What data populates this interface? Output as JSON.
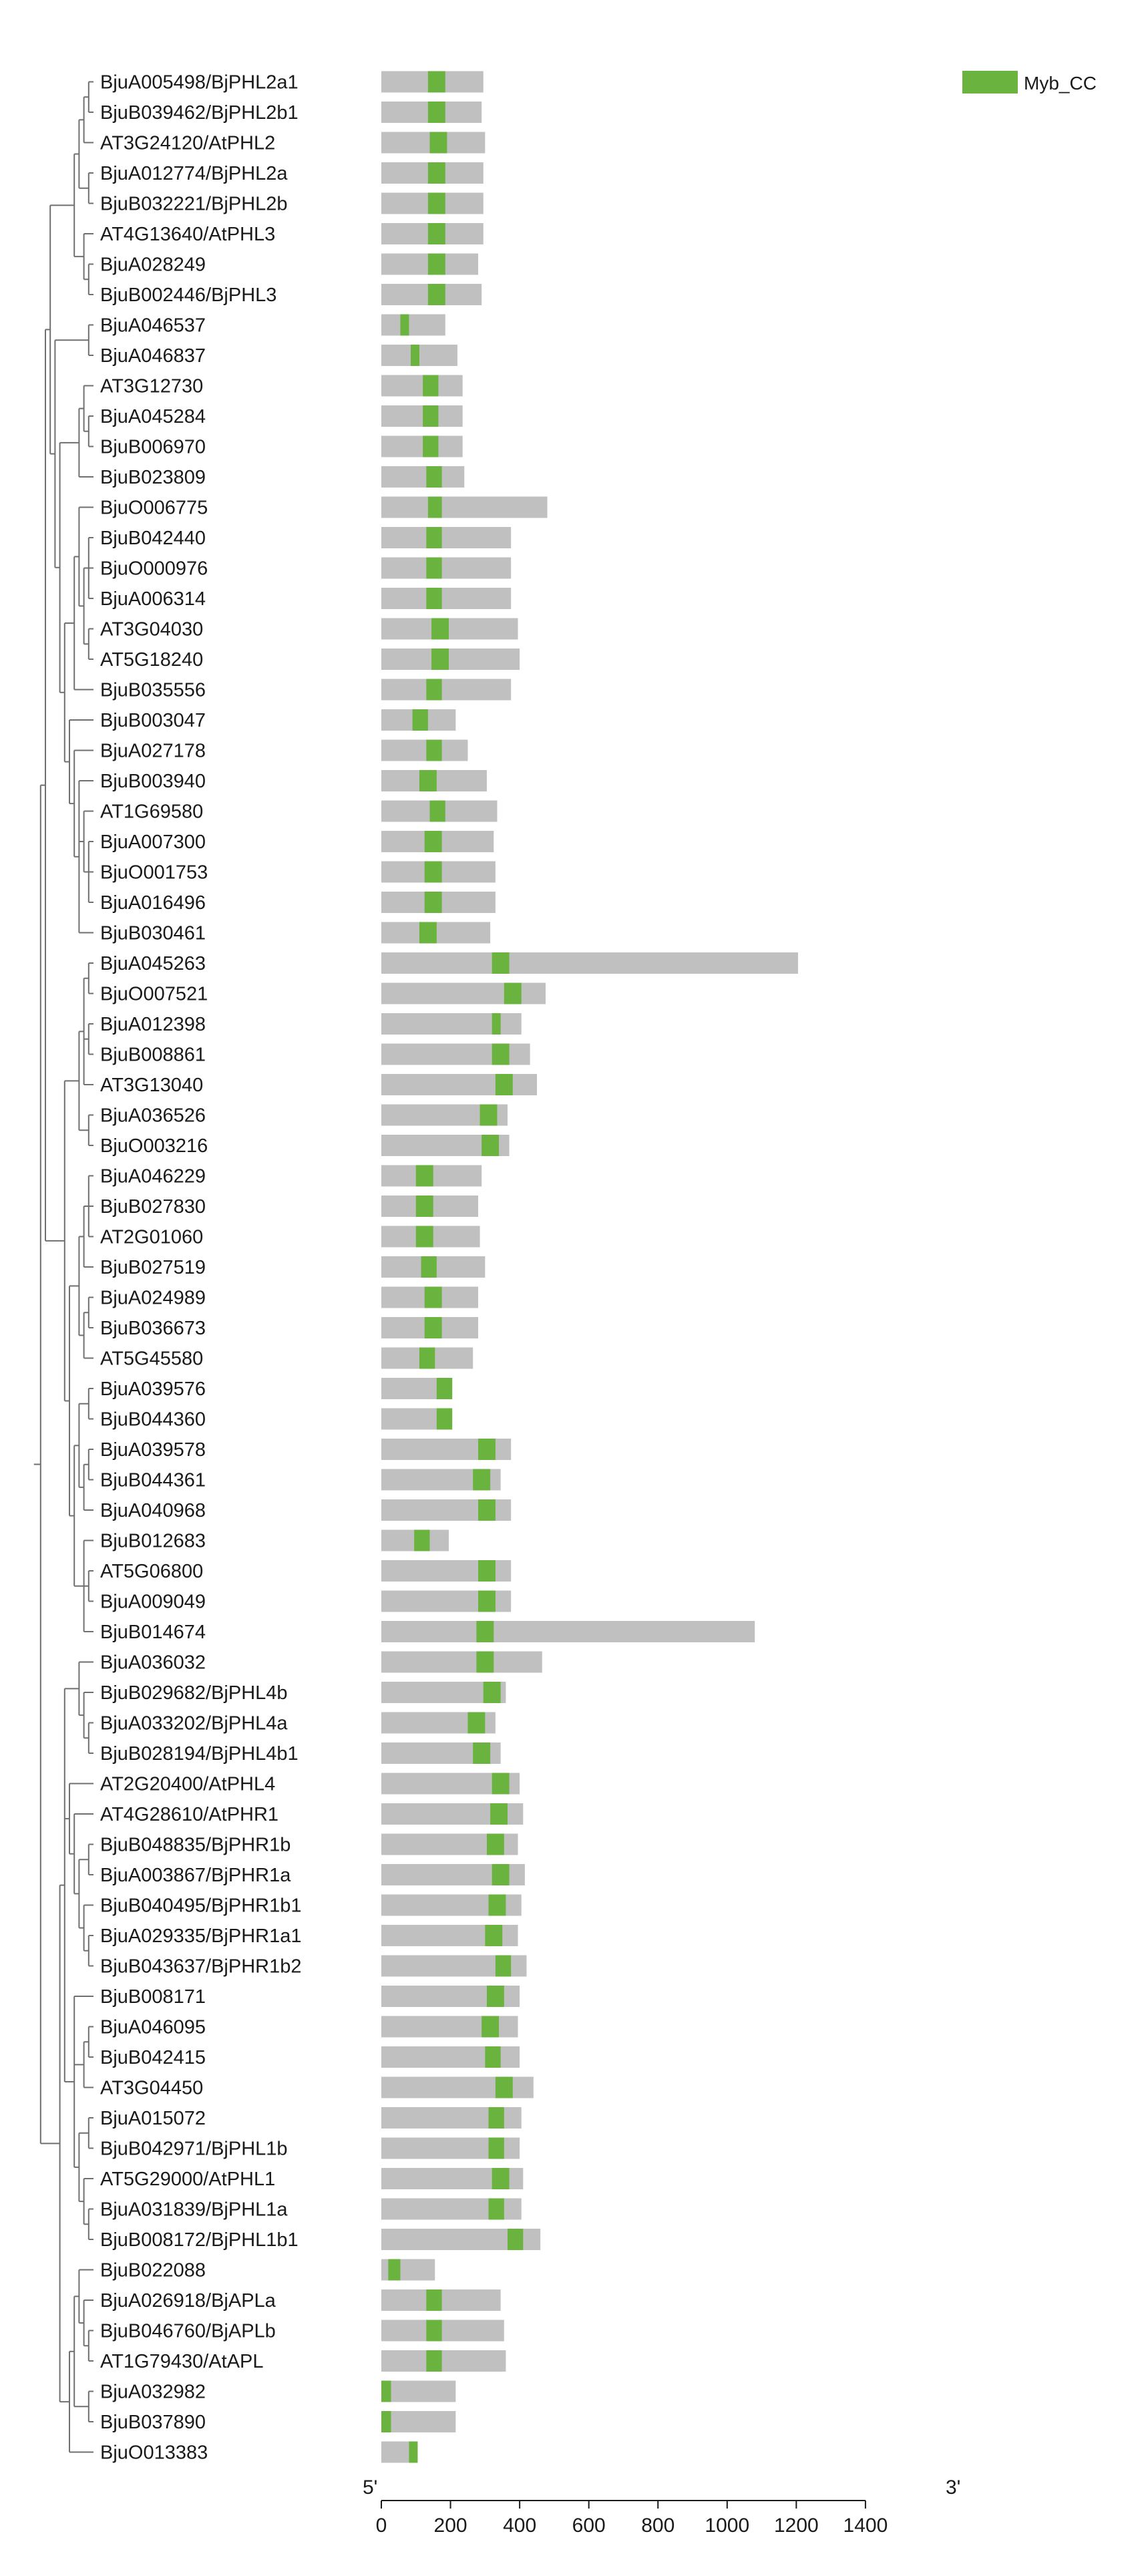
{
  "legend": {
    "label": "Myb_CC",
    "color": "#6ab33f"
  },
  "colors": {
    "protein": "#c0c0c0",
    "domain": "#6ab33f",
    "tree": "#6f6f6f",
    "axis": "#1a1a1a"
  },
  "axis": {
    "start_label": "5'",
    "end_label": "3'",
    "ticks": [
      0,
      200,
      400,
      600,
      800,
      1000,
      1200,
      1400
    ],
    "max": 1400
  },
  "genes": [
    {
      "name": "BjuA005498/BjPHL2a1",
      "length": 295,
      "domain": [
        135,
        185
      ]
    },
    {
      "name": "BjuB039462/BjPHL2b1",
      "length": 290,
      "domain": [
        135,
        185
      ]
    },
    {
      "name": "AT3G24120/AtPHL2",
      "length": 300,
      "domain": [
        140,
        190
      ]
    },
    {
      "name": "BjuA012774/BjPHL2a",
      "length": 295,
      "domain": [
        135,
        185
      ]
    },
    {
      "name": "BjuB032221/BjPHL2b",
      "length": 295,
      "domain": [
        135,
        185
      ]
    },
    {
      "name": "AT4G13640/AtPHL3",
      "length": 295,
      "domain": [
        135,
        185
      ]
    },
    {
      "name": "BjuA028249",
      "length": 280,
      "domain": [
        135,
        185
      ]
    },
    {
      "name": "BjuB002446/BjPHL3",
      "length": 290,
      "domain": [
        135,
        185
      ]
    },
    {
      "name": "BjuA046537",
      "length": 185,
      "domain": [
        55,
        80
      ]
    },
    {
      "name": "BjuA046837",
      "length": 220,
      "domain": [
        85,
        110
      ]
    },
    {
      "name": "AT3G12730",
      "length": 235,
      "domain": [
        120,
        165
      ]
    },
    {
      "name": "BjuA045284",
      "length": 235,
      "domain": [
        120,
        165
      ]
    },
    {
      "name": "BjuB006970",
      "length": 235,
      "domain": [
        120,
        165
      ]
    },
    {
      "name": "BjuB023809",
      "length": 240,
      "domain": [
        130,
        175
      ]
    },
    {
      "name": "BjuO006775",
      "length": 480,
      "domain": [
        135,
        175
      ]
    },
    {
      "name": "BjuB042440",
      "length": 375,
      "domain": [
        130,
        175
      ]
    },
    {
      "name": "BjuO000976",
      "length": 375,
      "domain": [
        130,
        175
      ]
    },
    {
      "name": "BjuA006314",
      "length": 375,
      "domain": [
        130,
        175
      ]
    },
    {
      "name": "AT3G04030",
      "length": 395,
      "domain": [
        145,
        195
      ]
    },
    {
      "name": "AT5G18240",
      "length": 400,
      "domain": [
        145,
        195
      ]
    },
    {
      "name": "BjuB035556",
      "length": 375,
      "domain": [
        130,
        175
      ]
    },
    {
      "name": "BjuB003047",
      "length": 215,
      "domain": [
        90,
        135
      ]
    },
    {
      "name": "BjuA027178",
      "length": 250,
      "domain": [
        130,
        175
      ]
    },
    {
      "name": "BjuB003940",
      "length": 305,
      "domain": [
        110,
        160
      ]
    },
    {
      "name": "AT1G69580",
      "length": 335,
      "domain": [
        140,
        185
      ]
    },
    {
      "name": "BjuA007300",
      "length": 325,
      "domain": [
        125,
        175
      ]
    },
    {
      "name": "BjuO001753",
      "length": 330,
      "domain": [
        125,
        175
      ]
    },
    {
      "name": "BjuA016496",
      "length": 330,
      "domain": [
        125,
        175
      ]
    },
    {
      "name": "BjuB030461",
      "length": 315,
      "domain": [
        110,
        160
      ]
    },
    {
      "name": "BjuA045263",
      "length": 1205,
      "domain": [
        320,
        370
      ]
    },
    {
      "name": "BjuO007521",
      "length": 475,
      "domain": [
        355,
        405
      ]
    },
    {
      "name": "BjuA012398",
      "length": 405,
      "domain": [
        320,
        345
      ]
    },
    {
      "name": "BjuB008861",
      "length": 430,
      "domain": [
        320,
        370
      ]
    },
    {
      "name": "AT3G13040",
      "length": 450,
      "domain": [
        330,
        380
      ]
    },
    {
      "name": "BjuA036526",
      "length": 365,
      "domain": [
        285,
        335
      ]
    },
    {
      "name": "BjuO003216",
      "length": 370,
      "domain": [
        290,
        340
      ]
    },
    {
      "name": "BjuA046229",
      "length": 290,
      "domain": [
        100,
        150
      ]
    },
    {
      "name": "BjuB027830",
      "length": 280,
      "domain": [
        100,
        150
      ]
    },
    {
      "name": "AT2G01060",
      "length": 285,
      "domain": [
        100,
        150
      ]
    },
    {
      "name": "BjuB027519",
      "length": 300,
      "domain": [
        115,
        160
      ]
    },
    {
      "name": "BjuA024989",
      "length": 280,
      "domain": [
        125,
        175
      ]
    },
    {
      "name": "BjuB036673",
      "length": 280,
      "domain": [
        125,
        175
      ]
    },
    {
      "name": "AT5G45580",
      "length": 265,
      "domain": [
        110,
        155
      ]
    },
    {
      "name": "BjuA039576",
      "length": 205,
      "domain": [
        160,
        205
      ]
    },
    {
      "name": "BjuB044360",
      "length": 205,
      "domain": [
        160,
        205
      ]
    },
    {
      "name": "BjuA039578",
      "length": 375,
      "domain": [
        280,
        330
      ]
    },
    {
      "name": "BjuB044361",
      "length": 345,
      "domain": [
        265,
        315
      ]
    },
    {
      "name": "BjuA040968",
      "length": 375,
      "domain": [
        280,
        330
      ]
    },
    {
      "name": "BjuB012683",
      "length": 195,
      "domain": [
        95,
        140
      ]
    },
    {
      "name": "AT5G06800",
      "length": 375,
      "domain": [
        280,
        330
      ]
    },
    {
      "name": "BjuA009049",
      "length": 375,
      "domain": [
        280,
        330
      ]
    },
    {
      "name": "BjuB014674",
      "length": 1080,
      "domain": [
        275,
        325
      ]
    },
    {
      "name": "BjuA036032",
      "length": 465,
      "domain": [
        275,
        325
      ]
    },
    {
      "name": "BjuB029682/BjPHL4b",
      "length": 360,
      "domain": [
        295,
        345
      ]
    },
    {
      "name": "BjuA033202/BjPHL4a",
      "length": 330,
      "domain": [
        250,
        300
      ]
    },
    {
      "name": "BjuB028194/BjPHL4b1",
      "length": 345,
      "domain": [
        265,
        315
      ]
    },
    {
      "name": "AT2G20400/AtPHL4",
      "length": 400,
      "domain": [
        320,
        370
      ]
    },
    {
      "name": "AT4G28610/AtPHR1",
      "length": 410,
      "domain": [
        315,
        365
      ]
    },
    {
      "name": "BjuB048835/BjPHR1b",
      "length": 395,
      "domain": [
        305,
        355
      ]
    },
    {
      "name": "BjuA003867/BjPHR1a",
      "length": 415,
      "domain": [
        320,
        370
      ]
    },
    {
      "name": "BjuB040495/BjPHR1b1",
      "length": 405,
      "domain": [
        310,
        360
      ]
    },
    {
      "name": "BjuA029335/BjPHR1a1",
      "length": 395,
      "domain": [
        300,
        350
      ]
    },
    {
      "name": "BjuB043637/BjPHR1b2",
      "length": 420,
      "domain": [
        330,
        375
      ]
    },
    {
      "name": "BjuB008171",
      "length": 400,
      "domain": [
        305,
        355
      ]
    },
    {
      "name": "BjuA046095",
      "length": 395,
      "domain": [
        290,
        340
      ]
    },
    {
      "name": "BjuB042415",
      "length": 400,
      "domain": [
        300,
        345
      ]
    },
    {
      "name": "AT3G04450",
      "length": 440,
      "domain": [
        330,
        380
      ]
    },
    {
      "name": "BjuA015072",
      "length": 405,
      "domain": [
        310,
        355
      ]
    },
    {
      "name": "BjuB042971/BjPHL1b",
      "length": 400,
      "domain": [
        310,
        355
      ]
    },
    {
      "name": "AT5G29000/AtPHL1",
      "length": 410,
      "domain": [
        320,
        370
      ]
    },
    {
      "name": "BjuA031839/BjPHL1a",
      "length": 405,
      "domain": [
        310,
        355
      ]
    },
    {
      "name": "BjuB008172/BjPHL1b1",
      "length": 460,
      "domain": [
        365,
        410
      ]
    },
    {
      "name": "BjuB022088",
      "length": 155,
      "domain": [
        20,
        55
      ]
    },
    {
      "name": "BjuA026918/BjAPLa",
      "length": 345,
      "domain": [
        130,
        175
      ]
    },
    {
      "name": "BjuB046760/BjAPLb",
      "length": 355,
      "domain": [
        130,
        175
      ]
    },
    {
      "name": "AT1G79430/AtAPL",
      "length": 360,
      "domain": [
        130,
        175
      ]
    },
    {
      "name": "BjuA032982",
      "length": 215,
      "domain": [
        0,
        28
      ]
    },
    {
      "name": "BjuB037890",
      "length": 215,
      "domain": [
        0,
        28
      ]
    },
    {
      "name": "BjuO013383",
      "length": 105,
      "domain": [
        80,
        105
      ]
    }
  ]
}
